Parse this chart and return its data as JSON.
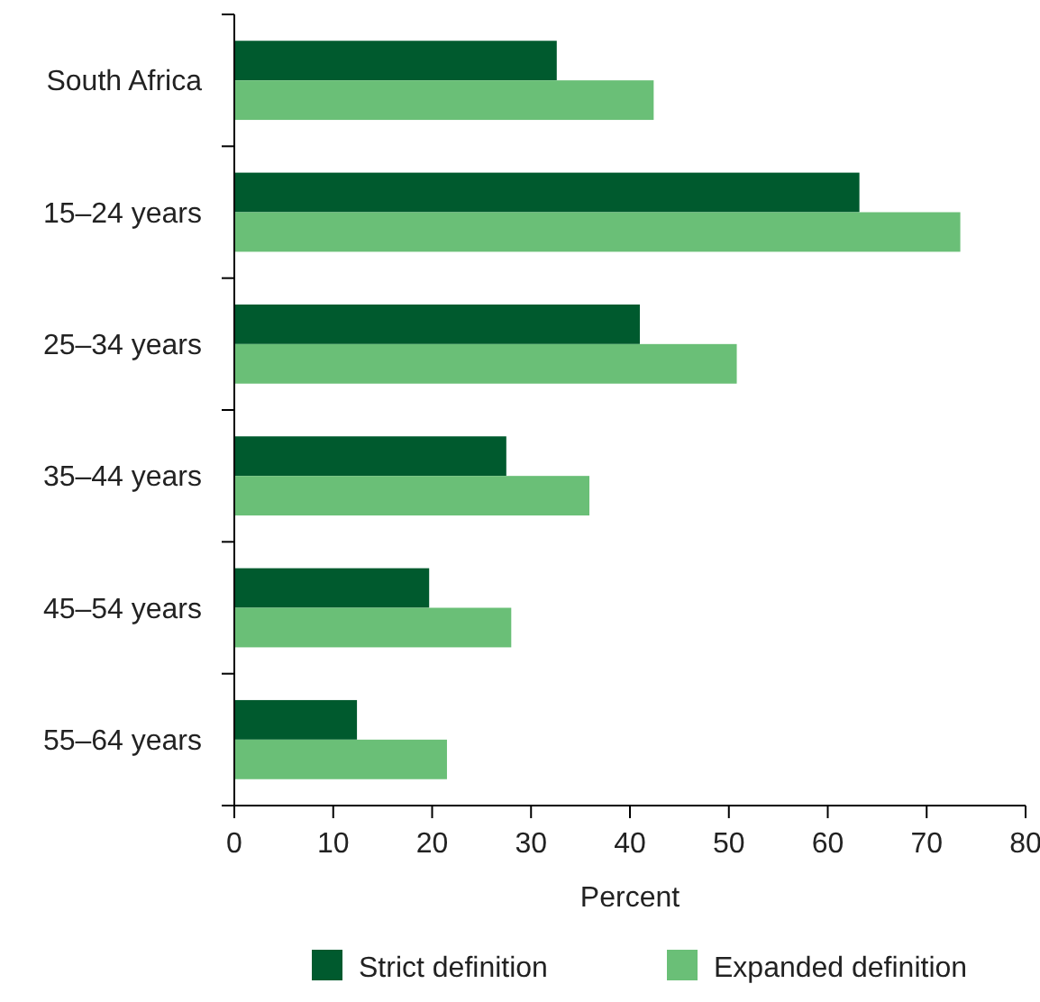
{
  "chart_data": {
    "type": "bar",
    "orientation": "horizontal",
    "xlabel": "Percent",
    "categories": [
      "South Africa",
      "15–24 years",
      "25–34 years",
      "35–44 years",
      "45–54 years",
      "55–64 years"
    ],
    "series": [
      {
        "name": "Strict definition",
        "color": "#005a2e",
        "values": [
          32.6,
          63.2,
          41.0,
          27.5,
          19.7,
          12.4
        ]
      },
      {
        "name": "Expanded definition",
        "color": "#6abf77",
        "values": [
          42.4,
          73.4,
          50.8,
          35.9,
          28.0,
          21.5
        ]
      }
    ],
    "xlim": [
      0,
      80
    ],
    "xticks": [
      0,
      10,
      20,
      30,
      40,
      50,
      60,
      70,
      80
    ],
    "grid": false,
    "legend": "bottom"
  }
}
